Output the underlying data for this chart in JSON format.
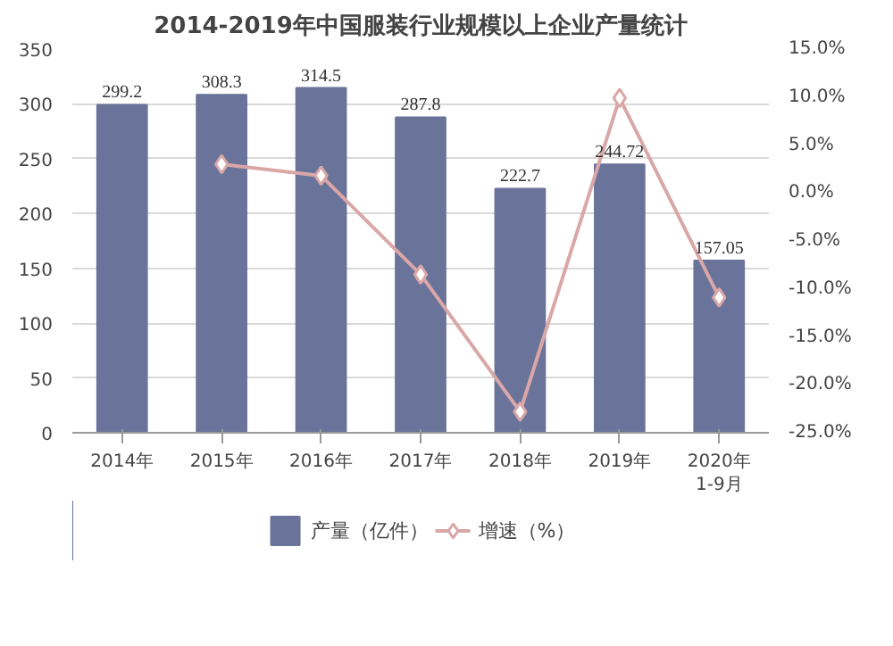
{
  "chart_data": {
    "type": "bar",
    "title": "2014-2019年中国服装行业规模以上企业产量统计",
    "categories": [
      "2014年",
      "2015年",
      "2016年",
      "2017年",
      "2018年",
      "2019年",
      "2020年\n1-9月"
    ],
    "series": [
      {
        "name": "产量（亿件）",
        "color": "#6a7399",
        "values": [
          299.2,
          308.3,
          314.5,
          287.8,
          222.7,
          244.72,
          157.05
        ],
        "value_labels": [
          "299.2",
          "308.3",
          "314.5",
          "287.8",
          "222.7",
          "244.72",
          "157.05"
        ]
      },
      {
        "name": "增速（%）",
        "type": "line",
        "axis": "y2",
        "color": "#d9a7a7",
        "marker": "diamond",
        "values": [
          null,
          3.0,
          1.8,
          -8.5,
          -22.8,
          9.9,
          -10.9
        ]
      }
    ],
    "ylim": [
      0,
      350
    ],
    "yticks": [
      0,
      50,
      100,
      150,
      200,
      250,
      300,
      350
    ],
    "y2lim": [
      -25,
      15
    ],
    "y2ticks": [
      {
        "value": -25,
        "label": "-25.0%"
      },
      {
        "value": -20,
        "label": "-20.0%"
      },
      {
        "value": -15,
        "label": "-15.0%"
      },
      {
        "value": -10,
        "label": "-10.0%"
      },
      {
        "value": -5,
        "label": "-5.0%"
      },
      {
        "value": 0,
        "label": "0.0%"
      },
      {
        "value": 5,
        "label": "5.0%"
      },
      {
        "value": 10,
        "label": "10.0%"
      },
      {
        "value": 15,
        "label": "15.0%"
      }
    ],
    "grid": "y",
    "legend": "bottom"
  }
}
